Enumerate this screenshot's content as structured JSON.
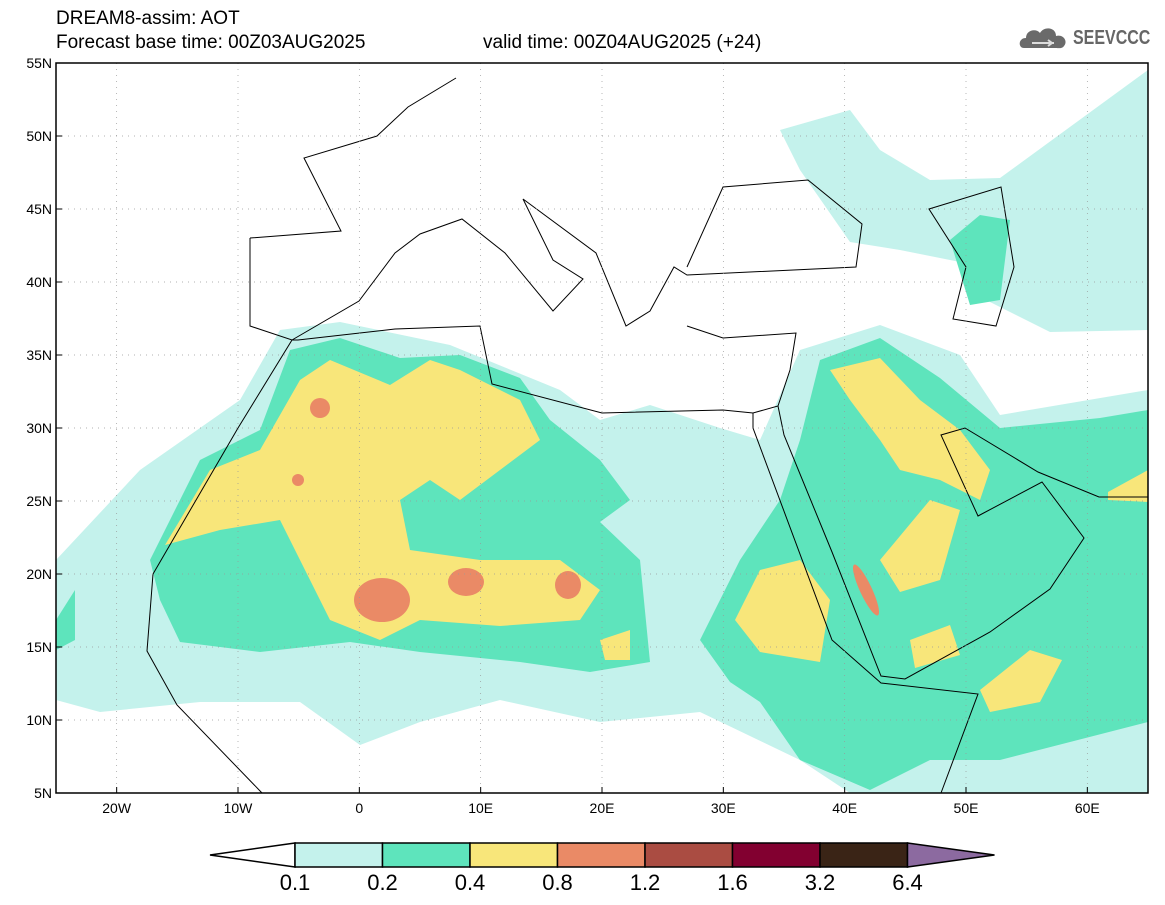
{
  "header": {
    "title": "DREAM8-assim: AOT",
    "base_time": "Forecast base time: 00Z03AUG2025",
    "valid_time": "valid time: 00Z04AUG2025 (+24)",
    "logo_text": "SEEVCCC"
  },
  "map": {
    "lat_labels": [
      "55N",
      "50N",
      "45N",
      "40N",
      "35N",
      "30N",
      "25N",
      "20N",
      "15N",
      "10N",
      "5N"
    ],
    "lon_labels": [
      "20W",
      "10W",
      "0",
      "10E",
      "20E",
      "30E",
      "40E",
      "50E",
      "60E"
    ],
    "lon_range": [
      -25,
      65
    ],
    "lat_range": [
      5,
      55
    ]
  },
  "colorbar": {
    "levels": [
      "0.1",
      "0.2",
      "0.4",
      "0.8",
      "1.2",
      "1.6",
      "3.2",
      "6.4"
    ],
    "colors": [
      "#c4f2ec",
      "#5ee4bc",
      "#f8e67a",
      "#ea8a66",
      "#aa4c42",
      "#820030",
      "#3a2416",
      "#8c6aa0"
    ]
  }
}
